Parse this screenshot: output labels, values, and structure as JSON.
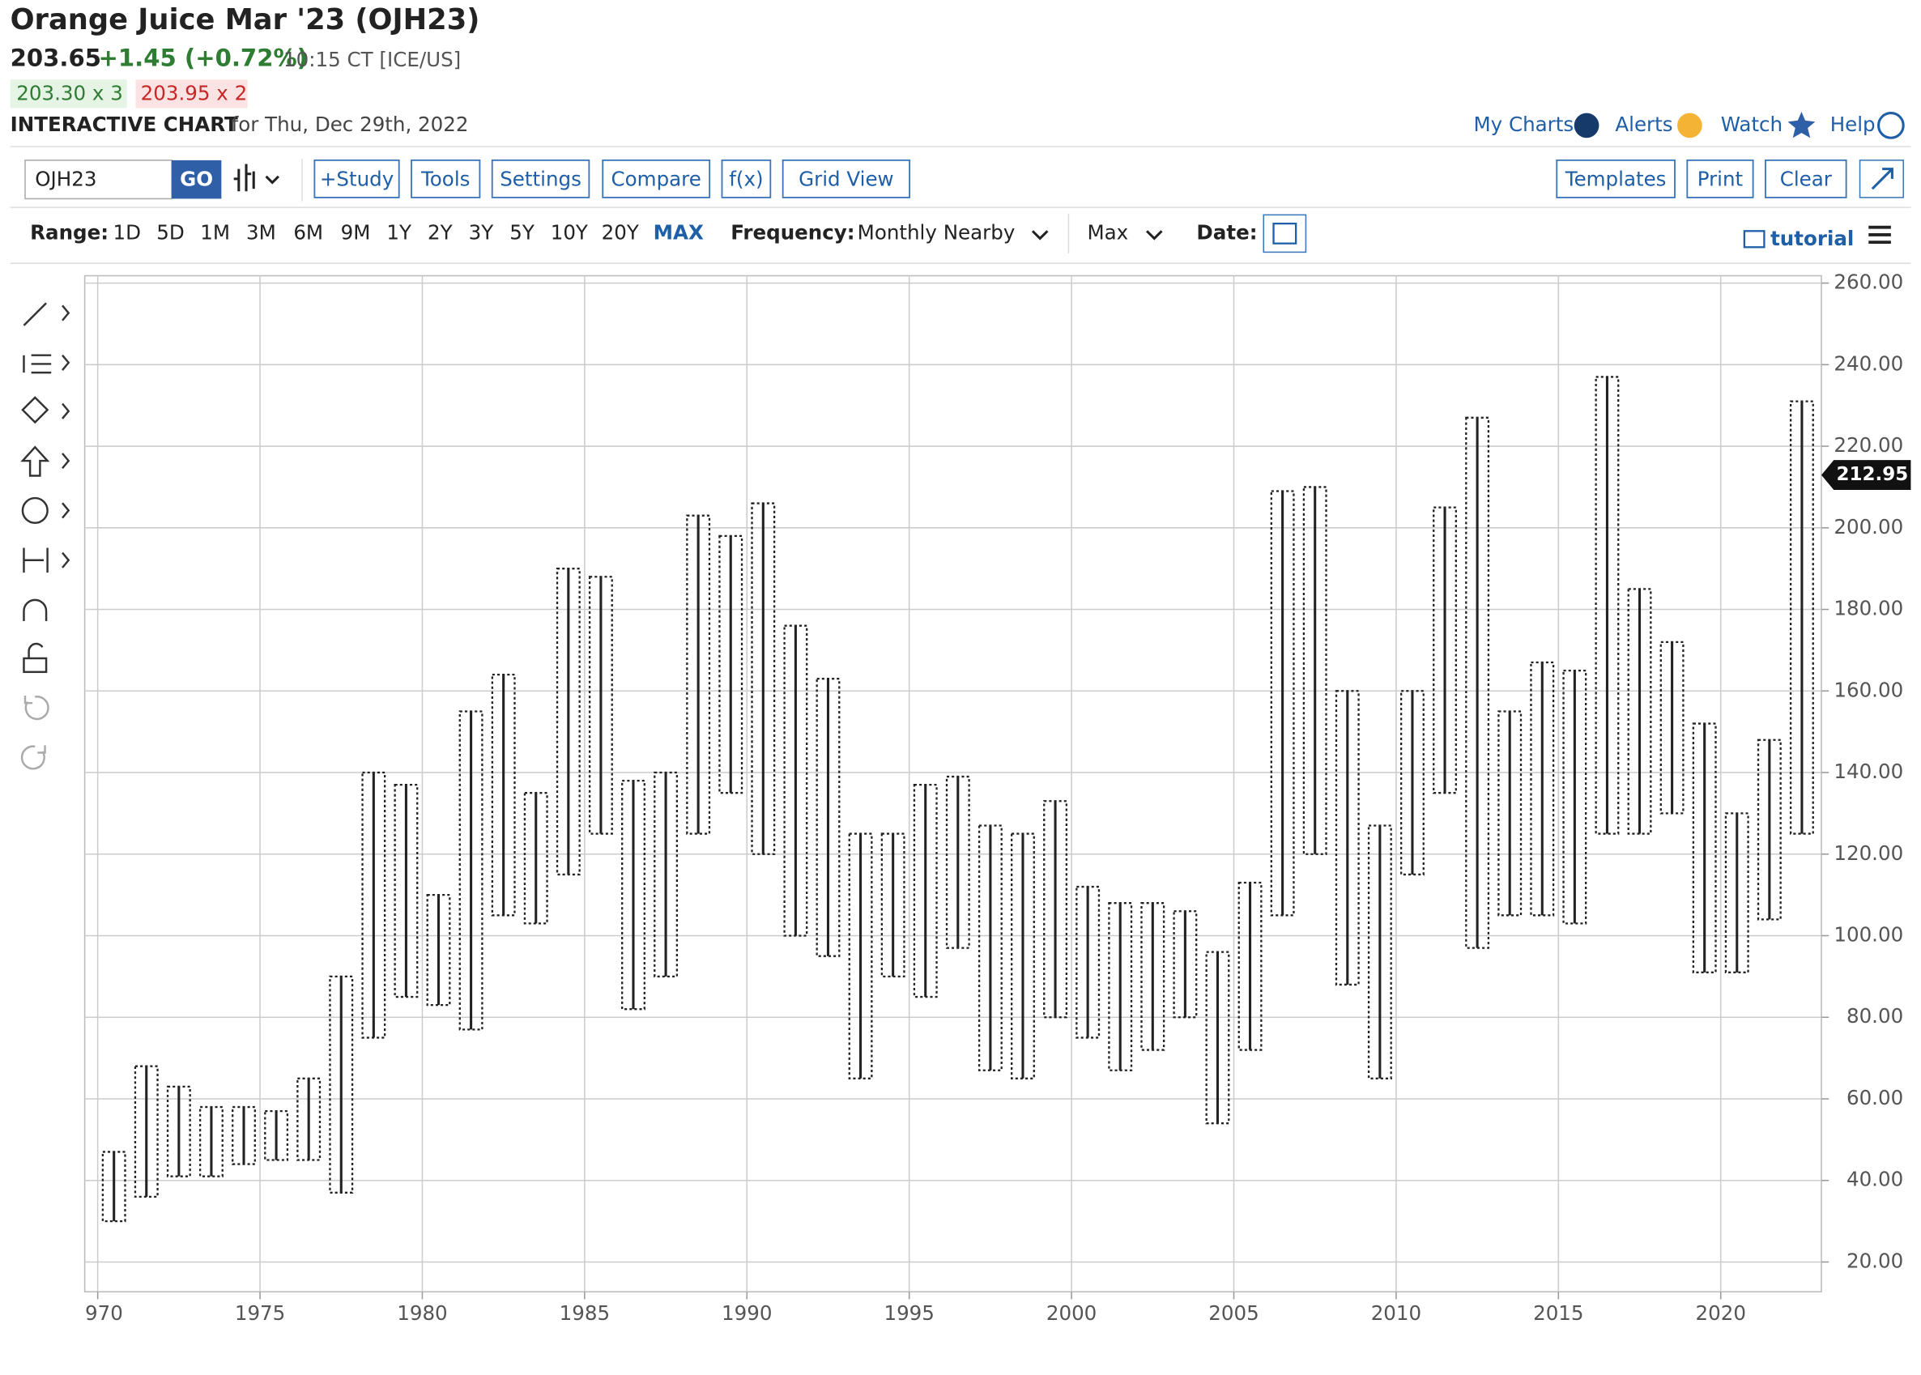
{
  "header": {
    "title": "Orange Juice Mar '23 (OJH23)",
    "last": "203.65",
    "change": "+1.45 (+0.72%)",
    "time": "10:15 CT [ICE/US]",
    "bid": "203.30 x 3",
    "ask": "203.95 x 2",
    "chart_label": "INTERACTIVE CHART",
    "chart_date": "for Thu, Dec 29th, 2022"
  },
  "top_links": [
    "My Charts",
    "Alerts",
    "Watch",
    "Help"
  ],
  "toolbar": {
    "symbol": "OJH23",
    "go": "GO",
    "buttons": [
      "+Study",
      "Tools",
      "Settings",
      "Compare",
      "f(x)",
      "Grid View"
    ],
    "right_buttons": [
      "Templates",
      "Print",
      "Clear"
    ]
  },
  "range_bar": {
    "label": "Range:",
    "options": [
      "1D",
      "5D",
      "1M",
      "3M",
      "6M",
      "9M",
      "1Y",
      "2Y",
      "3Y",
      "5Y",
      "10Y",
      "20Y",
      "MAX"
    ],
    "frequency_label": "Frequency:",
    "frequency": "Monthly Nearby",
    "max": "Max",
    "date_label": "Date:",
    "tutorial": "tutorial"
  },
  "chart_data": {
    "type": "ohlc",
    "x": [
      1970.5,
      1971.5,
      1972.5,
      1973.5,
      1974.5,
      1975.5,
      1976.5,
      1977.5,
      1978.5,
      1979.5,
      1980.5,
      1981.5,
      1982.5,
      1983.5,
      1984.5,
      1985.5,
      1986.5,
      1987.5,
      1988.5,
      1989.5,
      1990.5,
      1991.5,
      1992.5,
      1993.5,
      1994.5,
      1995.5,
      1996.5,
      1997.5,
      1998.5,
      1999.5,
      2000.5,
      2001.5,
      2002.5,
      2003.5,
      2004.5,
      2005.5,
      2006.5,
      2007.5,
      2008.5,
      2009.5,
      2010.5,
      2011.5,
      2012.5,
      2013.5,
      2014.5,
      2015.5,
      2016.5,
      2017.5,
      2018.5,
      2019.5,
      2020.5,
      2021.5,
      2022.5
    ],
    "low": [
      30,
      36,
      41,
      41,
      44,
      45,
      45,
      37,
      75,
      85,
      83,
      77,
      105,
      103,
      115,
      125,
      82,
      90,
      125,
      135,
      120,
      100,
      95,
      65,
      90,
      85,
      97,
      67,
      65,
      80,
      75,
      67,
      72,
      80,
      54,
      72,
      105,
      120,
      88,
      65,
      115,
      135,
      97,
      105,
      105,
      103,
      125,
      125,
      130,
      91,
      91,
      104,
      125
    ],
    "high": [
      47,
      68,
      63,
      58,
      58,
      57,
      65,
      90,
      140,
      137,
      110,
      155,
      164,
      135,
      190,
      188,
      138,
      140,
      203,
      198,
      206,
      176,
      163,
      125,
      125,
      137,
      139,
      127,
      125,
      133,
      112,
      108,
      108,
      106,
      96,
      113,
      209,
      210,
      160,
      127,
      160,
      205,
      227,
      155,
      167,
      165,
      237,
      185,
      172,
      152,
      130,
      148,
      231
    ],
    "color": "#222222",
    "last_value": 212.95,
    "xlim": [
      1969.6,
      2023.1
    ],
    "xticks": [
      1970,
      1975,
      1980,
      1985,
      1990,
      1995,
      2000,
      2005,
      2010,
      2015,
      2020
    ],
    "ylim": [
      12.7,
      261.8
    ],
    "yticks": [
      {
        "value": 20,
        "label": "20.00"
      },
      {
        "value": 40,
        "label": "40.00"
      },
      {
        "value": 60,
        "label": "60.00"
      },
      {
        "value": 80,
        "label": "80.00"
      },
      {
        "value": 100,
        "label": "100.00"
      },
      {
        "value": 120,
        "label": "120.00"
      },
      {
        "value": 140,
        "label": "140.00"
      },
      {
        "value": 160,
        "label": "160.00"
      },
      {
        "value": 180,
        "label": "180.00"
      },
      {
        "value": 200,
        "label": "200.00"
      },
      {
        "value": 220,
        "label": "220.00"
      },
      {
        "value": 240,
        "label": "240.00"
      },
      {
        "value": 260,
        "label": "260.00"
      }
    ],
    "grid": true
  }
}
